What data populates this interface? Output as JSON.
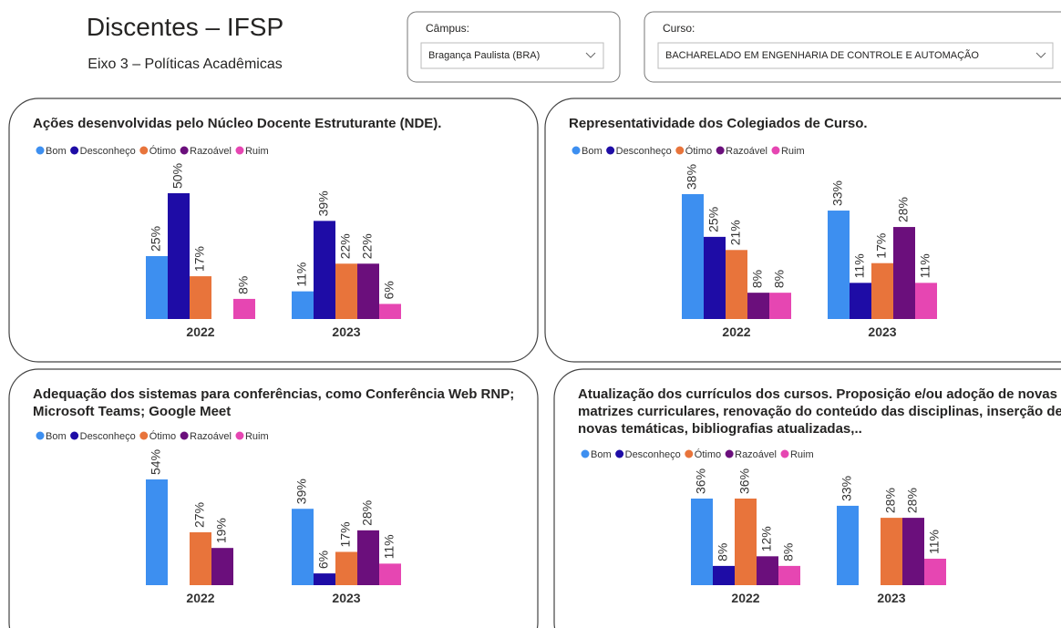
{
  "header": {
    "title": "Discentes – IFSP",
    "subtitle": "Eixo 3 – Políticas Acadêmicas"
  },
  "filters": [
    {
      "label": "Câmpus:",
      "value": "Bragança Paulista (BRA)"
    },
    {
      "label": "Curso:",
      "value": "BACHARELADO EM ENGENHARIA DE CONTROLE E AUTOMAÇÃO"
    }
  ],
  "chart_data": [
    {
      "type": "bar",
      "title": "Ações desenvolvidas pelo Núcleo Docente Estruturante (NDE).",
      "categories": [
        "2022",
        "2023"
      ],
      "series": [
        {
          "name": "Bom",
          "color": "#3d8ff0",
          "values": [
            25,
            11
          ],
          "value_labels": [
            "25%",
            "11%"
          ]
        },
        {
          "name": "Desconheço",
          "color": "#1e0ca6",
          "values": [
            50,
            39
          ],
          "value_labels": [
            "50%",
            "39%"
          ]
        },
        {
          "name": "Ótimo",
          "color": "#e8743b",
          "values": [
            17,
            22
          ],
          "value_labels": [
            "17%",
            "22%"
          ]
        },
        {
          "name": "Razoável",
          "color": "#6b0f7c",
          "values": [
            null,
            22
          ],
          "value_labels": [
            null,
            "22%"
          ]
        },
        {
          "name": "Ruim",
          "color": "#e646b2",
          "values": [
            8,
            6
          ],
          "value_labels": [
            "8%",
            "6%"
          ]
        }
      ]
    },
    {
      "type": "bar",
      "title": "Representatividade dos Colegiados de Curso.",
      "categories": [
        "2022",
        "2023"
      ],
      "series": [
        {
          "name": "Bom",
          "color": "#3d8ff0",
          "values": [
            38,
            33
          ],
          "value_labels": [
            "38%",
            "33%"
          ]
        },
        {
          "name": "Desconheço",
          "color": "#1e0ca6",
          "values": [
            25,
            11
          ],
          "value_labels": [
            "25%",
            "11%"
          ]
        },
        {
          "name": "Ótimo",
          "color": "#e8743b",
          "values": [
            21,
            17
          ],
          "value_labels": [
            "21%",
            "17%"
          ]
        },
        {
          "name": "Razoável",
          "color": "#6b0f7c",
          "values": [
            8,
            28
          ],
          "value_labels": [
            "8%",
            "28%"
          ]
        },
        {
          "name": "Ruim",
          "color": "#e646b2",
          "values": [
            8,
            11
          ],
          "value_labels": [
            "8%",
            "11%"
          ]
        }
      ]
    },
    {
      "type": "bar",
      "title": "Adequação dos sistemas para conferências, como Conferência Web RNP; Microsoft Teams; Google Meet",
      "categories": [
        "2022",
        "2023"
      ],
      "series": [
        {
          "name": "Bom",
          "color": "#3d8ff0",
          "values": [
            54,
            39
          ],
          "value_labels": [
            "54%",
            "39%"
          ]
        },
        {
          "name": "Desconheço",
          "color": "#1e0ca6",
          "values": [
            null,
            6
          ],
          "value_labels": [
            null,
            "6%"
          ]
        },
        {
          "name": "Ótimo",
          "color": "#e8743b",
          "values": [
            27,
            17
          ],
          "value_labels": [
            "27%",
            "17%"
          ]
        },
        {
          "name": "Razoável",
          "color": "#6b0f7c",
          "values": [
            19,
            28
          ],
          "value_labels": [
            "19%",
            "28%"
          ]
        },
        {
          "name": "Ruim",
          "color": "#e646b2",
          "values": [
            null,
            11
          ],
          "value_labels": [
            null,
            "11%"
          ]
        }
      ]
    },
    {
      "type": "bar",
      "title": "Atualização dos currículos dos cursos. Proposição e/ou adoção de novas matrizes curriculares, renovação do conteúdo das disciplinas, inserção de novas temáticas, bibliografias atualizadas,..",
      "categories": [
        "2022",
        "2023"
      ],
      "series": [
        {
          "name": "Bom",
          "color": "#3d8ff0",
          "values": [
            36,
            33
          ],
          "value_labels": [
            "36%",
            "33%"
          ]
        },
        {
          "name": "Desconheço",
          "color": "#1e0ca6",
          "values": [
            8,
            null
          ],
          "value_labels": [
            "8%",
            null
          ]
        },
        {
          "name": "Ótimo",
          "color": "#e8743b",
          "values": [
            36,
            28
          ],
          "value_labels": [
            "36%",
            "28%"
          ]
        },
        {
          "name": "Razoável",
          "color": "#6b0f7c",
          "values": [
            12,
            28
          ],
          "value_labels": [
            "12%",
            "28%"
          ]
        },
        {
          "name": "Ruim",
          "color": "#e646b2",
          "values": [
            8,
            11
          ],
          "value_labels": [
            "8%",
            "11%"
          ]
        }
      ]
    }
  ]
}
